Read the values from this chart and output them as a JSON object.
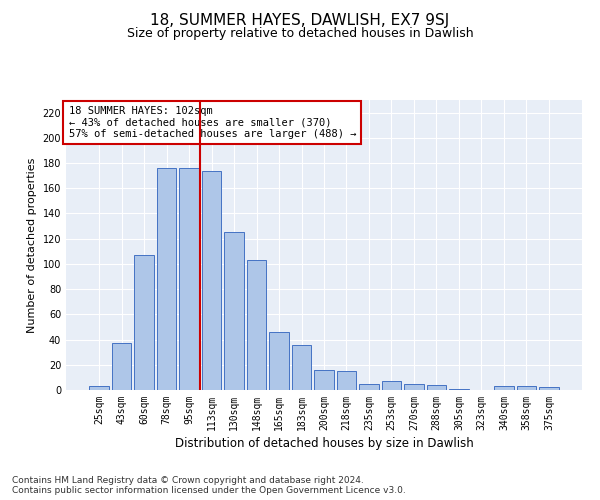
{
  "title": "18, SUMMER HAYES, DAWLISH, EX7 9SJ",
  "subtitle": "Size of property relative to detached houses in Dawlish",
  "xlabel": "Distribution of detached houses by size in Dawlish",
  "ylabel": "Number of detached properties",
  "categories": [
    "25sqm",
    "43sqm",
    "60sqm",
    "78sqm",
    "95sqm",
    "113sqm",
    "130sqm",
    "148sqm",
    "165sqm",
    "183sqm",
    "200sqm",
    "218sqm",
    "235sqm",
    "253sqm",
    "270sqm",
    "288sqm",
    "305sqm",
    "323sqm",
    "340sqm",
    "358sqm",
    "375sqm"
  ],
  "values": [
    3,
    37,
    107,
    176,
    176,
    174,
    125,
    103,
    46,
    36,
    16,
    15,
    5,
    7,
    5,
    4,
    1,
    0,
    3,
    3,
    2
  ],
  "bar_color": "#aec6e8",
  "bar_edge_color": "#4472c4",
  "vline_x": 4.5,
  "vline_color": "#cc0000",
  "annotation_text": "18 SUMMER HAYES: 102sqm\n← 43% of detached houses are smaller (370)\n57% of semi-detached houses are larger (488) →",
  "annotation_box_color": "#ffffff",
  "annotation_box_edge": "#cc0000",
  "ylim": [
    0,
    230
  ],
  "yticks": [
    0,
    20,
    40,
    60,
    80,
    100,
    120,
    140,
    160,
    180,
    200,
    220
  ],
  "background_color": "#e8eef7",
  "footer": "Contains HM Land Registry data © Crown copyright and database right 2024.\nContains public sector information licensed under the Open Government Licence v3.0.",
  "title_fontsize": 11,
  "subtitle_fontsize": 9,
  "ylabel_fontsize": 8,
  "xlabel_fontsize": 8.5,
  "annotation_fontsize": 7.5,
  "footer_fontsize": 6.5,
  "tick_fontsize": 7
}
